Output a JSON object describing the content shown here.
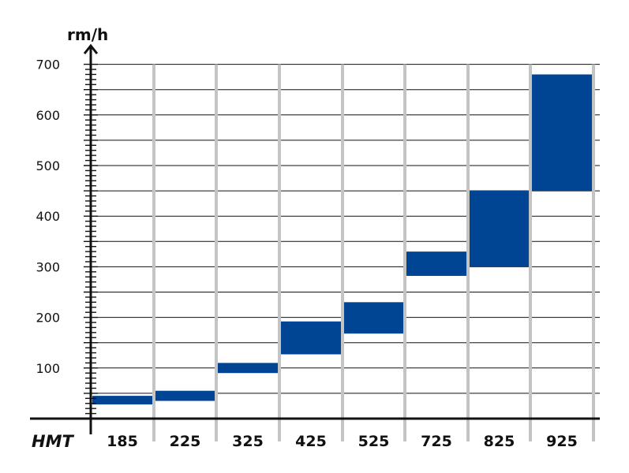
{
  "chart_data": {
    "type": "bar",
    "title": "",
    "ylabel": "rm/h",
    "xlabel": "HMT",
    "categories": [
      "185",
      "225",
      "325",
      "425",
      "525",
      "725",
      "825",
      "925"
    ],
    "ranges": [
      {
        "category": "185",
        "low": 28,
        "high": 45
      },
      {
        "category": "225",
        "low": 35,
        "high": 55
      },
      {
        "category": "325",
        "low": 90,
        "high": 110
      },
      {
        "category": "425",
        "low": 127,
        "high": 192
      },
      {
        "category": "525",
        "low": 168,
        "high": 230
      },
      {
        "category": "725",
        "low": 282,
        "high": 330
      },
      {
        "category": "825",
        "low": 300,
        "high": 451
      },
      {
        "category": "925",
        "low": 450,
        "high": 680
      }
    ],
    "y_ticks": [
      "100",
      "200",
      "300",
      "400",
      "500",
      "600",
      "700"
    ],
    "ylim": [
      0,
      700
    ],
    "grid": true,
    "bar_color": "#004494",
    "grid_color": "#c4c4c4",
    "line_color": "#111111"
  }
}
